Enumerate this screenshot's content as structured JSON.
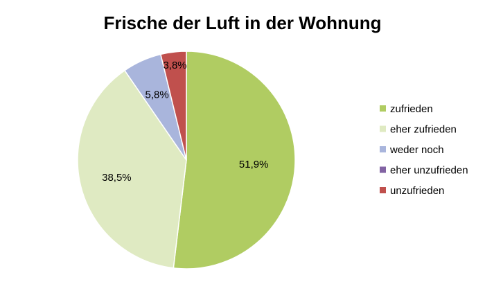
{
  "chart_data": {
    "type": "pie",
    "title": "Frische der Luft in der Wohnung",
    "legend_position": "right",
    "start_angle": "12 o'clock, clockwise",
    "slices": [
      {
        "label": "zufrieden",
        "value": 51.9,
        "display": "51,9%",
        "color": "#b0cc62"
      },
      {
        "label": "eher zufrieden",
        "value": 38.5,
        "display": "38,5%",
        "color": "#dfeac2"
      },
      {
        "label": "weder noch",
        "value": 5.8,
        "display": "5,8%",
        "color": "#a9b5dc"
      },
      {
        "label": "eher unzufrieden",
        "value": 0,
        "display": "",
        "color": "#8263a3"
      },
      {
        "label": "unzufrieden",
        "value": 3.8,
        "display": "3,8%",
        "color": "#c0504d"
      }
    ]
  }
}
